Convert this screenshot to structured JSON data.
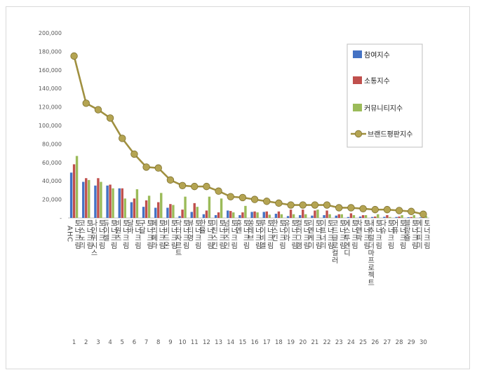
{
  "chart_data": {
    "type": "bar",
    "title": "",
    "xlabel": "",
    "ylabel": "",
    "ylim": [
      0,
      200000
    ],
    "y_ticks": [
      "-",
      "20,000",
      "40,000",
      "60,000",
      "80,000",
      "100,000",
      "120,000",
      "140,000",
      "160,000",
      "180,000",
      "200,000"
    ],
    "grid": false,
    "legend_position": "right",
    "categories": [
      "AHC 토너크림",
      "코스노리 토너크림",
      "나인위시스 토너크림",
      "듀이셀 토너크림",
      "비원츠 토너크림",
      "달바 토너크림",
      "구달 토너크림",
      "페리페라 토너크림",
      "비비드온 토너크림",
      "닥터자르트 토너크림",
      "뷰티영 토너크림",
      "한율 토너크림",
      "미친스킨 토너크림",
      "넘버즈인 토너크림",
      "휴엔 토너크림",
      "쏭레브 토너크림",
      "루이비엘 토너크림",
      "한스킨 토너크림",
      "유이라 토너크림",
      "컬러그램 토너크림",
      "리엔케이 토너크림",
      "이프너리 토너크림",
      "코드글로컬러 토너크림",
      "에스투엔디 토너크림",
      "차앤박 토너크림",
      "내추럴더마프로젝트 토너크림",
      "다슈 토너크림",
      "어퓨 토너크림",
      "블랑쥴 토너크림",
      "메디피미 토너크림"
    ],
    "ranks": [
      "1",
      "2",
      "3",
      "4",
      "5",
      "6",
      "7",
      "8",
      "9",
      "10",
      "11",
      "12",
      "13",
      "14",
      "15",
      "16",
      "17",
      "18",
      "19",
      "20",
      "21",
      "22",
      "23",
      "24",
      "25",
      "26",
      "27",
      "28",
      "29",
      "30"
    ],
    "series": [
      {
        "name": "참여지수",
        "kind": "bar",
        "color": "#4472c4",
        "values": [
          49000,
          39000,
          35000,
          35000,
          32000,
          17000,
          12000,
          11000,
          11000,
          2000,
          6500,
          4000,
          3000,
          8000,
          3000,
          6500,
          6500,
          4500,
          2000,
          3000,
          2500,
          3000,
          2500,
          1000,
          1500,
          1000,
          1200,
          1000,
          800,
          600
        ]
      },
      {
        "name": "소통지수",
        "kind": "bar",
        "color": "#c0504d",
        "values": [
          58000,
          43000,
          43000,
          36000,
          32000,
          21000,
          19000,
          17000,
          15000,
          9000,
          16000,
          8000,
          6000,
          7500,
          6000,
          7000,
          7000,
          7000,
          9000,
          9000,
          8000,
          8000,
          4000,
          5000,
          3000,
          1500,
          3000,
          1500,
          1000,
          1000
        ]
      },
      {
        "name": "커뮤니티지수",
        "kind": "bar",
        "color": "#9bbb59",
        "values": [
          67000,
          41000,
          39000,
          32000,
          21000,
          31000,
          24000,
          27000,
          14000,
          23000,
          12000,
          23000,
          21000,
          6000,
          13000,
          6000,
          3500,
          4000,
          4000,
          4000,
          9000,
          4000,
          4000,
          3000,
          3000,
          4000,
          1000,
          3000,
          3000,
          2000
        ]
      },
      {
        "name": "브랜드평판지수",
        "kind": "line",
        "color": "#a09040",
        "values": [
          175000,
          124000,
          117000,
          108000,
          86000,
          69000,
          55000,
          54000,
          41000,
          35000,
          34000,
          34000,
          29000,
          23000,
          22000,
          20000,
          18000,
          16000,
          14000,
          14000,
          14000,
          14000,
          11000,
          11000,
          10000,
          9000,
          9000,
          8000,
          7000,
          4000
        ]
      }
    ]
  }
}
